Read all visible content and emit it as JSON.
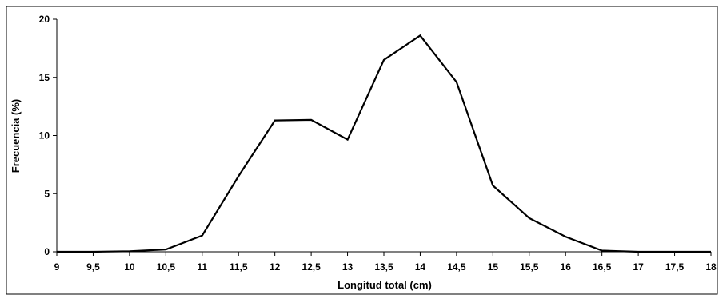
{
  "chart_data": {
    "type": "line",
    "title": "",
    "xlabel": "Longitud total (cm)",
    "ylabel": "Frecuencia (%)",
    "x_ticks": [
      "9",
      "9,5",
      "10",
      "10,5",
      "11",
      "11,5",
      "12",
      "12,5",
      "13",
      "13,5",
      "14",
      "14,5",
      "15",
      "15,5",
      "16",
      "16,5",
      "17",
      "17,5",
      "18"
    ],
    "y_ticks": [
      "0",
      "5",
      "10",
      "15",
      "20"
    ],
    "xlim": [
      9,
      18
    ],
    "ylim": [
      0,
      20
    ],
    "grid": false,
    "legend": "none",
    "line_color": "#000000",
    "series": [
      {
        "x": [
          9,
          9.5,
          10,
          10.5,
          11,
          11.5,
          12,
          12.5,
          13,
          13.5,
          14,
          14.5,
          15,
          15.5,
          16,
          16.5,
          17,
          17.5,
          18
        ],
        "y": [
          0,
          0,
          0.05,
          0.2,
          1.4,
          6.5,
          11.3,
          11.35,
          9.65,
          16.5,
          18.6,
          14.6,
          5.7,
          2.9,
          1.3,
          0.1,
          0,
          0,
          0
        ]
      }
    ]
  }
}
